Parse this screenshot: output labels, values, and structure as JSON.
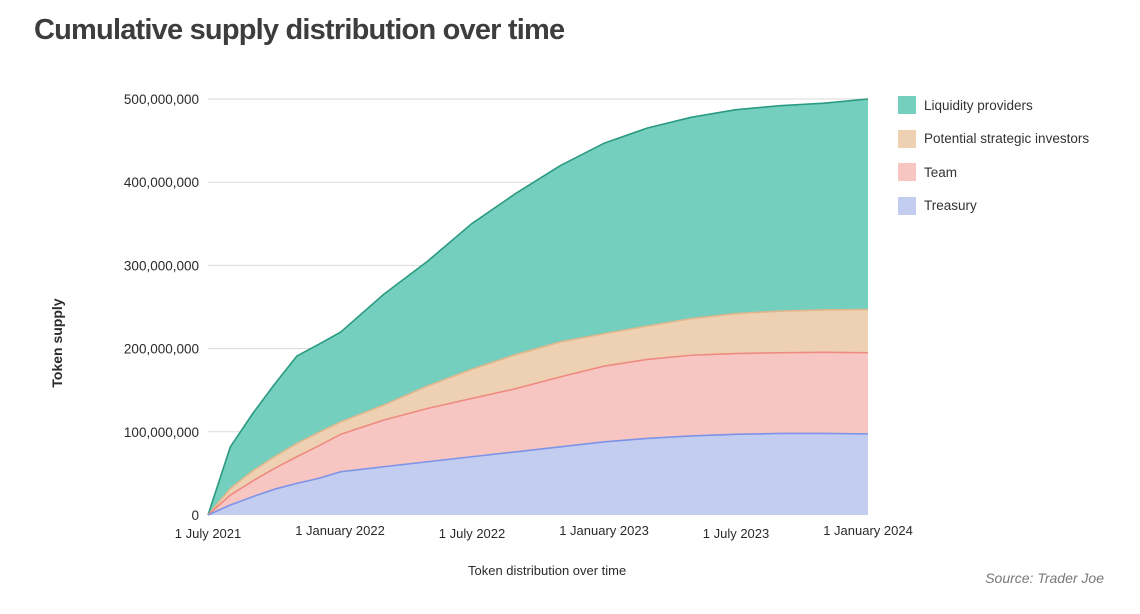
{
  "title": "Cumulative supply distribution over time",
  "source": "Source: Trader Joe",
  "colors": {
    "treasury_fill": "#c3cdf0",
    "treasury_line": "#7c93e8",
    "team_fill": "#f8c6c2",
    "team_line": "#ef8a80",
    "investors_fill": "#edd1b2",
    "investors_line": "#e2b68c",
    "lp_fill": "#74cfbe",
    "lp_line": "#2a9a80",
    "grid": "#dadada"
  },
  "chart_data": {
    "type": "area",
    "stacked": true,
    "title": "Cumulative supply distribution over time",
    "xlabel": "Token distribution over time",
    "ylabel": "Token supply",
    "ylim": [
      0,
      500000000
    ],
    "xlim": [
      "2021-07-01",
      "2024-01-01"
    ],
    "grid": true,
    "legend_position": "right",
    "x_ticks": [
      "1 July 2021",
      "1 January 2022",
      "1 July 2022",
      "1 January 2023",
      "1 July 2023",
      "1 January 2024"
    ],
    "y_ticks": [
      "0",
      "100,000,000",
      "200,000,000",
      "300,000,000",
      "400,000,000",
      "500,000,000"
    ],
    "legend": [
      "Liquidity providers",
      "Potential strategic investors",
      "Team",
      "Treasury"
    ],
    "x": [
      "2021-07-01",
      "2021-08-01",
      "2021-09-01",
      "2021-10-01",
      "2021-11-01",
      "2021-12-01",
      "2022-01-01",
      "2022-03-01",
      "2022-05-01",
      "2022-07-01",
      "2022-09-01",
      "2022-11-01",
      "2023-01-01",
      "2023-03-01",
      "2023-05-01",
      "2023-07-01",
      "2023-09-01",
      "2023-11-01",
      "2024-01-01"
    ],
    "series": [
      {
        "name": "Treasury",
        "cumulative": [
          0,
          12000000,
          22000000,
          31000000,
          38000000,
          44000000,
          52000000,
          58000000,
          64000000,
          70000000,
          76000000,
          82000000,
          88000000,
          92000000,
          95000000,
          97000000,
          98000000,
          98000000,
          97500000
        ]
      },
      {
        "name": "Team",
        "cumulative": [
          0,
          24000000,
          41000000,
          56000000,
          70000000,
          83000000,
          97000000,
          114000000,
          128000000,
          140000000,
          152000000,
          166000000,
          179000000,
          187000000,
          192000000,
          194000000,
          195000000,
          195500000,
          195000000
        ]
      },
      {
        "name": "Potential strategic investors",
        "cumulative": [
          0,
          32000000,
          53000000,
          70000000,
          86000000,
          99000000,
          112000000,
          132000000,
          155000000,
          175000000,
          193000000,
          208000000,
          218000000,
          227000000,
          236000000,
          242000000,
          245000000,
          246500000,
          247000000
        ]
      },
      {
        "name": "Liquidity providers",
        "cumulative": [
          0,
          82000000,
          122000000,
          157000000,
          191000000,
          205000000,
          220000000,
          265000000,
          305000000,
          350000000,
          387000000,
          420000000,
          447000000,
          465000000,
          478000000,
          487000000,
          492000000,
          495000000,
          500000000
        ]
      }
    ]
  }
}
